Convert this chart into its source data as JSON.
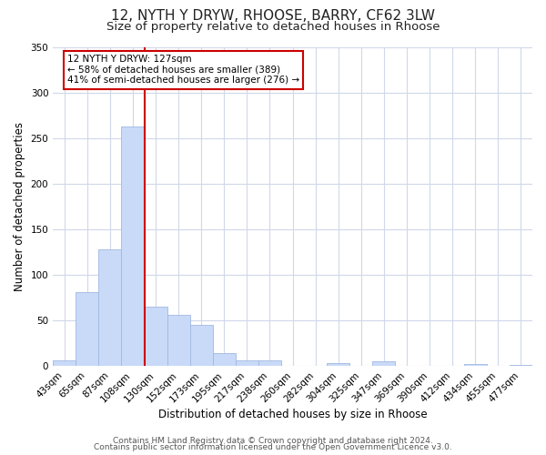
{
  "title": "12, NYTH Y DRYW, RHOOSE, BARRY, CF62 3LW",
  "subtitle": "Size of property relative to detached houses in Rhoose",
  "xlabel": "Distribution of detached houses by size in Rhoose",
  "ylabel": "Number of detached properties",
  "bar_labels": [
    "43sqm",
    "65sqm",
    "87sqm",
    "108sqm",
    "130sqm",
    "152sqm",
    "173sqm",
    "195sqm",
    "217sqm",
    "238sqm",
    "260sqm",
    "282sqm",
    "304sqm",
    "325sqm",
    "347sqm",
    "369sqm",
    "390sqm",
    "412sqm",
    "434sqm",
    "455sqm",
    "477sqm"
  ],
  "bar_values": [
    6,
    81,
    128,
    263,
    65,
    56,
    45,
    14,
    6,
    6,
    0,
    0,
    3,
    0,
    5,
    0,
    0,
    0,
    2,
    0,
    1
  ],
  "bar_color": "#c9daf8",
  "bar_edgecolor": "#a0b8e0",
  "vline_x": 3.5,
  "vline_color": "#cc0000",
  "annotation_text": "12 NYTH Y DRYW: 127sqm\n← 58% of detached houses are smaller (389)\n41% of semi-detached houses are larger (276) →",
  "annotation_box_color": "#ffffff",
  "annotation_box_edgecolor": "#cc0000",
  "ylim": [
    0,
    350
  ],
  "yticks": [
    0,
    50,
    100,
    150,
    200,
    250,
    300,
    350
  ],
  "footer1": "Contains HM Land Registry data © Crown copyright and database right 2024.",
  "footer2": "Contains public sector information licensed under the Open Government Licence v3.0.",
  "bg_color": "#ffffff",
  "grid_color": "#d0d8e8",
  "title_fontsize": 11,
  "subtitle_fontsize": 9.5,
  "axis_label_fontsize": 8.5,
  "tick_fontsize": 7.5,
  "annotation_fontsize": 7.5,
  "footer_fontsize": 6.5
}
